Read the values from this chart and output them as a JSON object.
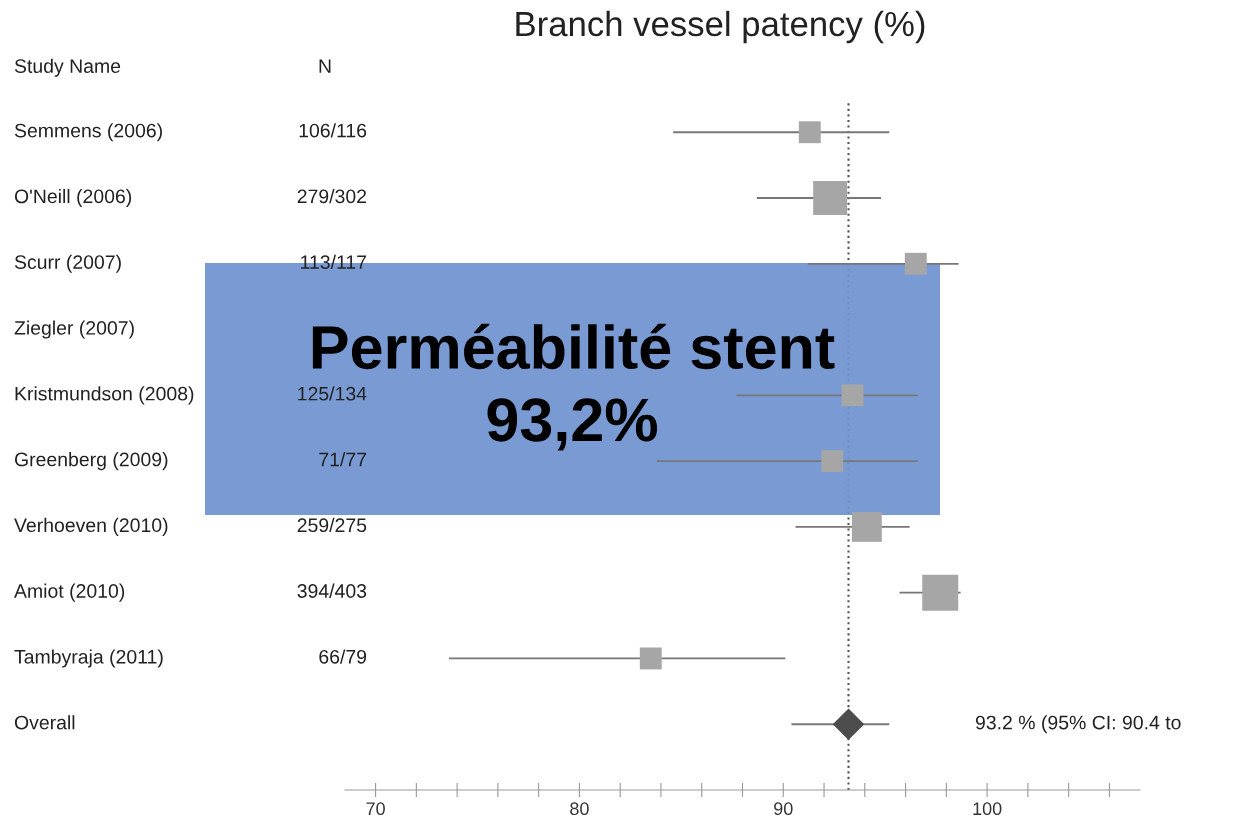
{
  "chart_data": {
    "type": "bubble",
    "orientation": "horizontal",
    "title": "Branch vessel patency (%)",
    "ylabel": "Study Name",
    "y2label": "N",
    "categories": [
      "Semmens (2006)",
      "O'Neill (2006)",
      "Scurr (2007)",
      "Ziegler (2007)",
      "Kristmundson (2008)",
      "Greenberg (2009)",
      "Verhoeven (2010)",
      "Amiot (2010)",
      "Tambyraja (2011)",
      "Overall"
    ],
    "y2_categories": [
      "106/116",
      "279/302",
      "113/117",
      null,
      "125/134",
      "71/77",
      "259/275",
      "394/403",
      "66/79",
      null
    ],
    "series": [
      {
        "marker": "square",
        "color": "#a6a6a6",
        "values": [
          91.3,
          92.3,
          96.5,
          null,
          93.4,
          92.4,
          94.1,
          97.7,
          83.5,
          null
        ],
        "sizes": [
          0.37,
          0.89,
          0.37,
          null,
          0.37,
          0.37,
          0.69,
          1,
          0.37,
          null
        ],
        "errors": [
          [
            84.6,
            95.2
          ],
          [
            88.7,
            94.8
          ],
          [
            91.2,
            98.6
          ],
          null,
          [
            87.7,
            96.6
          ],
          [
            83.8,
            96.6
          ],
          [
            90.6,
            96.2
          ],
          [
            95.7,
            98.7
          ],
          [
            73.6,
            90.1
          ],
          null
        ]
      },
      {
        "type": "scatter",
        "marker": "diamond",
        "color": "#4d4d4d",
        "values": [
          null,
          null,
          null,
          null,
          null,
          null,
          null,
          null,
          null,
          93.2
        ],
        "errors": [
          null,
          null,
          null,
          null,
          null,
          null,
          null,
          null,
          null,
          [
            90.4,
            95.2
          ]
        ]
      }
    ],
    "xlim": [
      68.5,
      107.5
    ],
    "xticks": [
      70,
      {
        "value": 72,
        "label": null
      },
      {
        "value": 74,
        "label": null
      },
      {
        "value": 76,
        "label": null
      },
      {
        "value": 78,
        "label": null
      },
      80,
      {
        "value": 82,
        "label": null
      },
      {
        "value": 84,
        "label": null
      },
      {
        "value": 86,
        "label": null
      },
      {
        "value": 88,
        "label": null
      },
      90,
      {
        "value": 92,
        "label": null
      },
      {
        "value": 94,
        "label": null
      },
      {
        "value": 96,
        "label": null
      },
      {
        "value": 98,
        "label": null
      },
      100,
      {
        "value": 102,
        "label": null
      },
      {
        "value": 104,
        "label": null
      },
      {
        "value": 106,
        "label": null
      }
    ],
    "ref_lines": [
      {
        "axis": "x",
        "value": 93.2,
        "label": null,
        "color": "#555555",
        "line_style": "dotted"
      }
    ],
    "annotations": [
      "93.2 % (95% CI: 90.4 to",
      "Perméabilité stent\n93,2%"
    ],
    "grid": false,
    "legend": false
  }
}
